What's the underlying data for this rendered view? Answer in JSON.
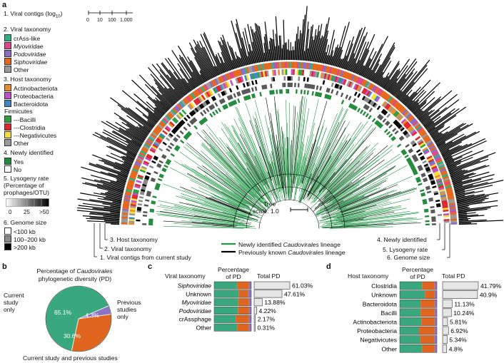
{
  "panels": {
    "a": "a",
    "b": "b",
    "c": "c",
    "d": "d"
  },
  "legend": {
    "contigs": {
      "title": "1. Viral contigs (log",
      "sub": "10",
      "close": ")",
      "ticks": [
        "0",
        "10",
        "100",
        "1,000"
      ]
    },
    "viral": {
      "title": "2. Viral taxonomy",
      "items": [
        {
          "label": "crAss-like",
          "color": "#2fae86",
          "italic": false
        },
        {
          "label": "Myoviridae",
          "color": "#e0448c",
          "italic": true
        },
        {
          "label": "Podoviridae",
          "color": "#8c6bc0",
          "italic": true
        },
        {
          "label": "Siphoviridae",
          "color": "#e4661b",
          "italic": true
        },
        {
          "label": "Other",
          "color": "#999999",
          "italic": false
        }
      ]
    },
    "host": {
      "title": "3. Host taxonomy",
      "items": [
        {
          "label": "Actinobacteriota",
          "color": "#ef8a2a",
          "swatch": true
        },
        {
          "label": "Proteobacteria",
          "color": "#c04ec9",
          "swatch": true
        },
        {
          "label": "Bacteroidota",
          "color": "#3f86c8",
          "swatch": true
        },
        {
          "label": "Firmicutes",
          "color": "",
          "swatch": false
        },
        {
          "label": "---Bacilli",
          "color": "#2e9e3e",
          "swatch": true
        },
        {
          "label": "---Clostridia",
          "color": "#e0262a",
          "swatch": true
        },
        {
          "label": "---Negativicutes",
          "color": "#f3df3a",
          "swatch": true
        },
        {
          "label": "Other",
          "color": "#9a9a9a",
          "swatch": true
        }
      ]
    },
    "newly": {
      "title": "4. Newly identified",
      "items": [
        {
          "label": "Yes",
          "color": "#1f8a3a"
        },
        {
          "label": "No",
          "color": "#ffffff"
        }
      ]
    },
    "lysogeny": {
      "title": "5. Lysogeny rate",
      "sub1": "(Percentage of",
      "sub2": "prophages/OTU)",
      "ticks": [
        "0",
        "25",
        ">50"
      ]
    },
    "genome": {
      "title": "6. Genome size",
      "items": [
        {
          "label": "<100 kb",
          "color": "#ffffff"
        },
        {
          "label": "100–200 kb",
          "color": "#8a8a8a"
        },
        {
          "label": ">200 kb",
          "color": "#000000"
        }
      ]
    }
  },
  "ring_labels": {
    "l1": "1. Viral contigs from current study",
    "l2": "2. Viral taxonomy",
    "l3": "3. Host taxonomy",
    "l4": "4. Newly identified",
    "l5": "5. Lysogeny rate",
    "l6": "6. Genome size"
  },
  "tree": {
    "scale_label": "Tree",
    "scale_value": "scale: 1.0"
  },
  "lineage_legend": {
    "new_pre": "Newly identified ",
    "new_ital": "Caudovirales",
    "new_post": " lineage",
    "old_pre": "Previously known ",
    "old_ital": "Caudovirales",
    "old_post": " lineage",
    "new_color": "#1f9a45",
    "old_color": "#000000"
  },
  "panel_b": {
    "title_pre": "Percentage of ",
    "title_ital": "Caudovirales",
    "title_line2": "phylogenetic diversity (PD)",
    "left_label_1": "Current",
    "left_label_2": "study",
    "left_label_3": "only",
    "right_label_1": "Previous",
    "right_label_2": "studies",
    "right_label_3": "only",
    "bottom_label": "Current study and previous studies"
  },
  "panel_c": {
    "row_header": "Viral taxonomy",
    "pct_header_1": "Percentage",
    "pct_header_2": "of PD",
    "total_header": "Total PD",
    "rows": [
      {
        "label": "Siphoviridae",
        "italic": true,
        "value": "61.03%"
      },
      {
        "label": "Unknown",
        "italic": false,
        "value": "47.61%"
      },
      {
        "label": "Myoviridae",
        "italic": true,
        "value": "13.88%"
      },
      {
        "label": "Podoviridae",
        "italic": true,
        "value": "4.22%"
      },
      {
        "label": "crAssphage",
        "italic": false,
        "value": "2.17%"
      },
      {
        "label": "Other",
        "italic": false,
        "value": "0.31%"
      }
    ]
  },
  "panel_d": {
    "row_header": "Host taxonomy",
    "pct_header_1": "Percentage",
    "pct_header_2": "of PD",
    "total_header": "Total PD",
    "rows": [
      {
        "label": "Clostridia",
        "value": "41.79%"
      },
      {
        "label": "Unknown",
        "value": "40.9%"
      },
      {
        "label": "Bacteroidota",
        "value": "11.13%"
      },
      {
        "label": "Bacilli",
        "value": "10.24%"
      },
      {
        "label": "Actinobacteriota",
        "value": "5.81%"
      },
      {
        "label": "Proteobacteria",
        "value": "6.92%"
      },
      {
        "label": "Negativicutes",
        "value": "5.34%"
      },
      {
        "label": "Other",
        "value": "4.8%"
      }
    ]
  },
  "chart_data": [
    {
      "type": "pie",
      "title": "Percentage of Caudovirales phylogenetic diversity (PD)",
      "categories": [
        "Current study only",
        "Current study and previous studies",
        "Previous studies only"
      ],
      "values": [
        65.1,
        30.6,
        4.3
      ],
      "labels": [
        "65.1%",
        "30.6%",
        "4.3%"
      ],
      "colors": [
        "#3aa87e",
        "#e0661f",
        "#8a74c4"
      ]
    },
    {
      "type": "bar",
      "title": "",
      "row_header": "Viral taxonomy",
      "categories": [
        "Siphoviridae",
        "Unknown",
        "Myoviridae",
        "Podoviridae",
        "crAssphage",
        "Other"
      ],
      "series": [
        {
          "name": "",
          "values": [
            61.03,
            47.61,
            13.88,
            4.22,
            2.17,
            0.31
          ]
        }
      ],
      "stack_green": [
        0.62,
        0.66,
        0.65,
        0.64,
        0.58,
        0.62
      ],
      "stack_orange": [
        0.32,
        0.26,
        0.29,
        0.3,
        0.36,
        0.32
      ],
      "xlim": [
        0,
        61.03
      ]
    },
    {
      "type": "bar",
      "title": "",
      "row_header": "Host taxonomy",
      "categories": [
        "Clostridia",
        "Unknown",
        "Bacteroidota",
        "Bacilli",
        "Actinobacteriota",
        "Proteobacteria",
        "Negativicutes",
        "Other"
      ],
      "series": [
        {
          "name": "",
          "values": [
            41.79,
            40.9,
            11.13,
            10.24,
            5.81,
            6.92,
            5.34,
            4.8
          ]
        }
      ],
      "stack_green": [
        0.6,
        0.68,
        0.56,
        0.56,
        0.58,
        0.52,
        0.55,
        0.6
      ],
      "stack_orange": [
        0.34,
        0.26,
        0.38,
        0.38,
        0.36,
        0.42,
        0.38,
        0.34
      ],
      "xlim": [
        0,
        41.79
      ]
    }
  ]
}
